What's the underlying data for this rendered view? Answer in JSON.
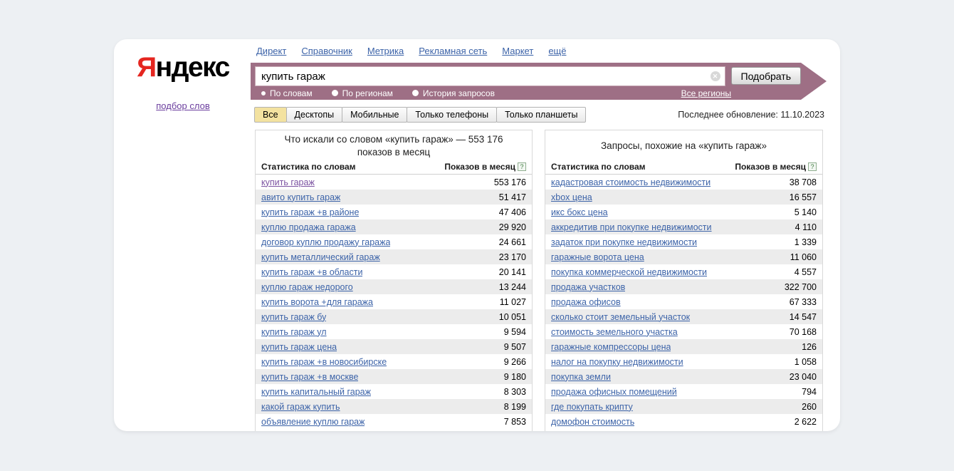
{
  "colors": {
    "accent_maroon": "#9e6f85",
    "link_blue": "#3c63a8",
    "visited_purple": "#7b52a1",
    "active_tab_yellow": "#f3e2a0",
    "page_bg": "#edf0f3"
  },
  "logo": {
    "first_letter": "Я",
    "rest": "ндекс",
    "subtitle": "подбор слов"
  },
  "nav": {
    "links": [
      "Директ",
      "Справочник",
      "Метрика",
      "Рекламная сеть",
      "Маркет",
      "ещё"
    ]
  },
  "search": {
    "value": "купить гараж",
    "clear_icon": "✕",
    "submit_label": "Подобрать",
    "modes": [
      {
        "label": "По словам",
        "selected": true
      },
      {
        "label": "По регионам",
        "selected": false
      },
      {
        "label": "История запросов",
        "selected": false
      }
    ],
    "regions_label": "Все регионы"
  },
  "tabs": {
    "items": [
      {
        "label": "Все",
        "active": true
      },
      {
        "label": "Десктопы",
        "active": false
      },
      {
        "label": "Мобильные",
        "active": false
      },
      {
        "label": "Только телефоны",
        "active": false
      },
      {
        "label": "Только планшеты",
        "active": false
      }
    ],
    "last_update_label": "Последнее обновление:",
    "last_update_date": "11.10.2023"
  },
  "tables": [
    {
      "title": "Что искали со словом «купить гараж» — 553 176 показов в месяц",
      "col_keyword": "Статистика по словам",
      "col_impressions": "Показов в месяц",
      "help_icon": "?",
      "rows": [
        {
          "keyword": "купить гараж",
          "impressions": "553 176",
          "visited": true
        },
        {
          "keyword": "авито купить гараж",
          "impressions": "51 417"
        },
        {
          "keyword": "купить гараж +в районе",
          "impressions": "47 406"
        },
        {
          "keyword": "куплю продажа гаража",
          "impressions": "29 920"
        },
        {
          "keyword": "договор куплю продажу гаража",
          "impressions": "24 661"
        },
        {
          "keyword": "купить металлический гараж",
          "impressions": "23 170"
        },
        {
          "keyword": "купить гараж +в области",
          "impressions": "20 141"
        },
        {
          "keyword": "куплю гараж недорого",
          "impressions": "13 244"
        },
        {
          "keyword": "купить ворота +для гаража",
          "impressions": "11 027"
        },
        {
          "keyword": "купить гараж бу",
          "impressions": "10 051"
        },
        {
          "keyword": "купить гараж ул",
          "impressions": "9 594"
        },
        {
          "keyword": "купить гараж цена",
          "impressions": "9 507"
        },
        {
          "keyword": "купить гараж +в новосибирске",
          "impressions": "9 266"
        },
        {
          "keyword": "купить гараж +в москве",
          "impressions": "9 180"
        },
        {
          "keyword": "купить капитальный гараж",
          "impressions": "8 303"
        },
        {
          "keyword": "какой гараж купить",
          "impressions": "8 199"
        },
        {
          "keyword": "объявление куплю гараж",
          "impressions": "7 853"
        }
      ]
    },
    {
      "title": "Запросы, похожие на «купить гараж»",
      "col_keyword": "Статистика по словам",
      "col_impressions": "Показов в месяц",
      "help_icon": "?",
      "rows": [
        {
          "keyword": "кадастровая стоимость недвижимости",
          "impressions": "38 708"
        },
        {
          "keyword": "xbox цена",
          "impressions": "16 557"
        },
        {
          "keyword": "икс бокс цена",
          "impressions": "5 140"
        },
        {
          "keyword": "аккредитив при покупке недвижимости",
          "impressions": "4 110"
        },
        {
          "keyword": "задаток при покупке недвижимости",
          "impressions": "1 339"
        },
        {
          "keyword": "гаражные ворота цена",
          "impressions": "11 060"
        },
        {
          "keyword": "покупка коммерческой недвижимости",
          "impressions": "4 557"
        },
        {
          "keyword": "продажа участков",
          "impressions": "322 700"
        },
        {
          "keyword": "продажа офисов",
          "impressions": "67 333"
        },
        {
          "keyword": "сколько стоит земельный участок",
          "impressions": "14 547"
        },
        {
          "keyword": "стоимость земельного участка",
          "impressions": "70 168"
        },
        {
          "keyword": "гаражные компрессоры цена",
          "impressions": "126"
        },
        {
          "keyword": "налог на покупку недвижимости",
          "impressions": "1 058"
        },
        {
          "keyword": "покупка земли",
          "impressions": "23 040"
        },
        {
          "keyword": "продажа офисных помещений",
          "impressions": "794"
        },
        {
          "keyword": "где покупать крипту",
          "impressions": "260"
        },
        {
          "keyword": "домофон стоимость",
          "impressions": "2 622"
        }
      ]
    }
  ]
}
